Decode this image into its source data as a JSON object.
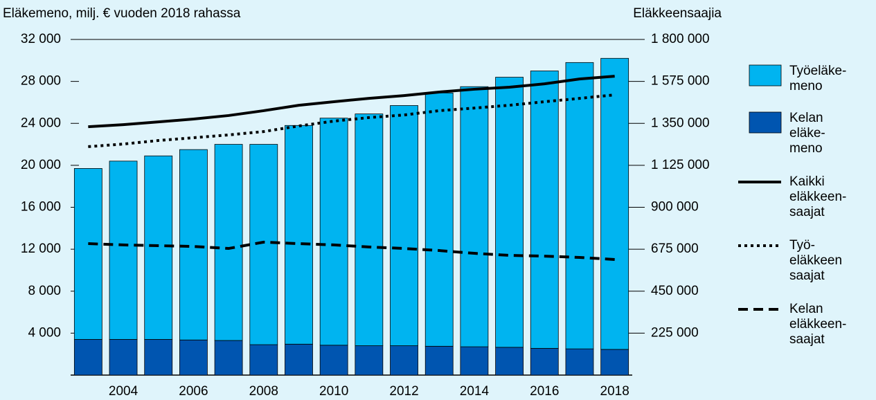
{
  "chart_data": {
    "type": "bar",
    "stacked": true,
    "y_label": "Eläkemeno, milj. € vuoden 2018 rahassa",
    "y2_label": "Eläkkeensaajia",
    "categories": [
      null,
      "2004",
      null,
      "2006",
      null,
      "2008",
      null,
      "2010",
      null,
      "2012",
      null,
      "2014",
      null,
      "2016",
      null,
      "2018"
    ],
    "series": [
      {
        "name": "Kelan\neläke-\nmeno",
        "type": "bar",
        "color": "#0055b0",
        "values": [
          3400,
          3400,
          3400,
          3350,
          3300,
          2900,
          2950,
          2850,
          2800,
          2800,
          2750,
          2700,
          2650,
          2550,
          2500,
          2450
        ]
      },
      {
        "name": "Työeläke-\nmeno",
        "type": "bar",
        "color": "#00b4f0",
        "values": [
          16300,
          17000,
          17500,
          18150,
          18700,
          19100,
          20850,
          21650,
          22100,
          22900,
          24150,
          24800,
          25750,
          26450,
          27300,
          27750
        ]
      },
      {
        "name": "Kaikki\neläkkeen-\nsaajat",
        "type": "line",
        "axis": "y2",
        "dash": "solid",
        "color": "#000000",
        "values": [
          1332000,
          1343000,
          1358000,
          1373000,
          1392000,
          1418000,
          1447000,
          1466000,
          1484000,
          1499000,
          1518000,
          1533000,
          1544000,
          1562000,
          1588000,
          1603000
        ]
      },
      {
        "name": "Työ-\neläkkeen\nsaajat",
        "type": "line",
        "axis": "y2",
        "dash": "dotted",
        "color": "#000000",
        "values": [
          1225000,
          1239000,
          1258000,
          1273000,
          1288000,
          1306000,
          1336000,
          1362000,
          1381000,
          1395000,
          1418000,
          1432000,
          1447000,
          1466000,
          1484000,
          1503000
        ]
      },
      {
        "name": "Kelan\neläkkeen-\nsaajat",
        "type": "line",
        "axis": "y2",
        "dash": "dashed",
        "color": "#000000",
        "values": [
          705000,
          698000,
          694000,
          690000,
          679000,
          713000,
          705000,
          698000,
          687000,
          679000,
          668000,
          653000,
          642000,
          638000,
          631000,
          620000
        ]
      }
    ],
    "ylim": [
      0,
      32000
    ],
    "yticks": [
      {
        "value": 4000,
        "label": "4 000"
      },
      {
        "value": 8000,
        "label": "8 000"
      },
      {
        "value": 12000,
        "label": "12 000"
      },
      {
        "value": 16000,
        "label": "16 000"
      },
      {
        "value": 20000,
        "label": "20 000"
      },
      {
        "value": 24000,
        "label": "24 000"
      },
      {
        "value": 28000,
        "label": "28 000"
      },
      {
        "value": 32000,
        "label": "32 000"
      }
    ],
    "y2lim": [
      0,
      1800000
    ],
    "y2ticks": [
      {
        "value": 225000,
        "label": "225 000"
      },
      {
        "value": 450000,
        "label": "450 000"
      },
      {
        "value": 675000,
        "label": "675 000"
      },
      {
        "value": 900000,
        "label": "900 000"
      },
      {
        "value": 1125000,
        "label": "1 125 000"
      },
      {
        "value": 1350000,
        "label": "1 350 000"
      },
      {
        "value": 1575000,
        "label": "1 575 000"
      },
      {
        "value": 1800000,
        "label": "1 800 000"
      }
    ],
    "legend": "right"
  }
}
